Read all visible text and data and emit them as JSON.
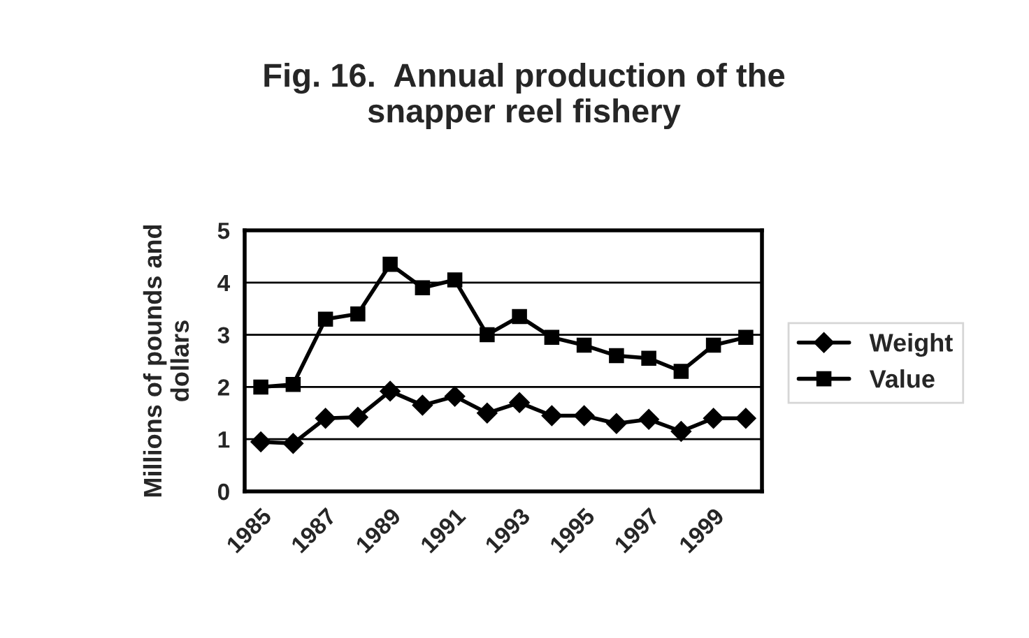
{
  "chart_data": {
    "type": "line",
    "title": "Fig. 16.  Annual production of the\nsnapper reel fishery",
    "ylabel": "Millions of pounds and\ndollars",
    "categories": [
      "1985",
      null,
      "1987",
      null,
      "1989",
      null,
      "1991",
      null,
      "1993",
      null,
      "1995",
      null,
      "1997",
      null,
      "1999",
      null
    ],
    "series": [
      {
        "name": "Weight",
        "color": "#000000",
        "marker": "diamond",
        "values": [
          0.95,
          0.92,
          1.4,
          1.42,
          1.92,
          1.65,
          1.82,
          1.5,
          1.7,
          1.45,
          1.45,
          1.3,
          1.38,
          1.15,
          1.4,
          1.4
        ]
      },
      {
        "name": "Value",
        "color": "#000000",
        "marker": "square",
        "values": [
          2.0,
          2.05,
          3.3,
          3.4,
          4.35,
          3.9,
          4.05,
          3.0,
          3.35,
          2.95,
          2.8,
          2.6,
          2.55,
          2.3,
          2.8,
          2.95
        ]
      }
    ],
    "ylim": [
      0,
      5
    ],
    "yticks": [
      0,
      1,
      2,
      3,
      4,
      5
    ],
    "grid": "y",
    "legend": "right",
    "line_style": "solid"
  }
}
